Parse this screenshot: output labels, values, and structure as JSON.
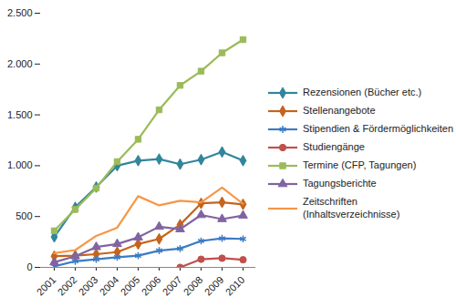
{
  "chart_data": {
    "type": "line",
    "categories": [
      "2001",
      "2002",
      "2003",
      "2004",
      "2005",
      "2006",
      "2007",
      "2008",
      "2009",
      "2010"
    ],
    "series": [
      {
        "name": "Rezensionen (Bücher etc.)",
        "color": "#31859c",
        "marker": "diamond",
        "values": [
          300,
          590,
          790,
          1000,
          1050,
          1065,
          1015,
          1060,
          1135,
          1050
        ]
      },
      {
        "name": "Stellenangebote",
        "color": "#c5641c",
        "marker": "diamond",
        "values": [
          110,
          115,
          130,
          150,
          230,
          280,
          420,
          630,
          640,
          620
        ]
      },
      {
        "name": "Stipendien & Fördermöglichkeiten",
        "color": "#3c7bc4",
        "marker": "asterisk",
        "values": [
          10,
          60,
          80,
          100,
          115,
          165,
          185,
          260,
          285,
          280
        ]
      },
      {
        "name": "Studiengänge",
        "color": "#c0504d",
        "marker": "circle",
        "values": [
          null,
          null,
          null,
          null,
          null,
          null,
          0,
          80,
          90,
          75
        ]
      },
      {
        "name": "Termine (CFP, Tagungen)",
        "color": "#9bbb59",
        "marker": "square",
        "values": [
          360,
          570,
          780,
          1040,
          1260,
          1550,
          1790,
          1930,
          2110,
          2240
        ]
      },
      {
        "name": "Tagungsberichte",
        "color": "#8064a2",
        "marker": "triangle",
        "values": [
          50,
          110,
          200,
          230,
          295,
          400,
          375,
          515,
          475,
          510
        ]
      },
      {
        "name": "Zeitschriften (Inhaltsverzeichnisse)",
        "color": "#f79646",
        "marker": "none",
        "values": [
          140,
          170,
          310,
          390,
          700,
          610,
          655,
          640,
          785,
          625
        ]
      }
    ],
    "ylim": [
      0,
      2500
    ],
    "yticks": [
      0,
      500,
      {
        "value": 1000,
        "label": "1.000"
      },
      {
        "value": 1500,
        "label": "1.500"
      },
      {
        "value": 2000,
        "label": "2.000"
      },
      {
        "value": 2500,
        "label": "2.500"
      }
    ],
    "grid": false,
    "legend": "right"
  }
}
